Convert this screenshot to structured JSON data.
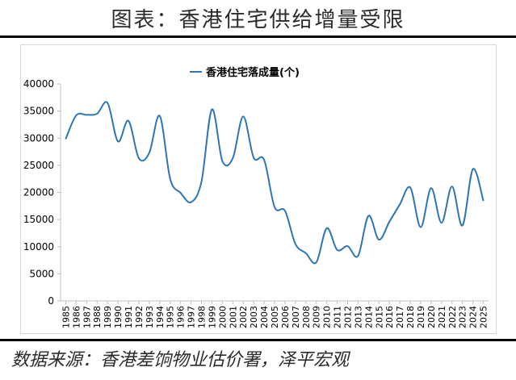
{
  "figure": {
    "title": "图表：香港住宅供给增量受限",
    "source": "数据来源：香港差饷物业估价署，泽平宏观"
  },
  "colors": {
    "series": "#2e75b6",
    "rule": "#000000",
    "axis": "#bfbfbf"
  },
  "chart_data": {
    "type": "line",
    "title": "",
    "xlabel": "",
    "ylabel": "",
    "ylim": [
      0,
      40000
    ],
    "yticks": [
      0,
      5000,
      10000,
      15000,
      20000,
      25000,
      30000,
      35000,
      40000
    ],
    "grid": false,
    "legend_position": "top",
    "x": [
      "1985",
      "1986",
      "1987",
      "1988",
      "1989",
      "1990",
      "1991",
      "1992",
      "1993",
      "1994",
      "1995",
      "1996",
      "1997",
      "1998",
      "1999",
      "2000",
      "2001",
      "2002",
      "2003",
      "2004",
      "2005",
      "2006",
      "2007",
      "2008",
      "2009",
      "2010",
      "2011",
      "2012",
      "2013",
      "2014",
      "2015",
      "2016",
      "2017",
      "2018",
      "2019",
      "2020",
      "2021",
      "2022",
      "2023",
      "2024",
      "2025"
    ],
    "series": [
      {
        "name": "香港住宅落成量(个)",
        "values": [
          29900,
          34200,
          34300,
          34500,
          36500,
          29400,
          33200,
          26300,
          27300,
          34100,
          22500,
          19900,
          18200,
          22000,
          35300,
          25800,
          26300,
          34000,
          26400,
          26000,
          17300,
          16600,
          10500,
          8800,
          7100,
          13400,
          9400,
          10100,
          8300,
          15700,
          11300,
          14600,
          17800,
          20900,
          13600,
          20800,
          14400,
          21100,
          13900,
          24300,
          18500
        ]
      }
    ]
  }
}
